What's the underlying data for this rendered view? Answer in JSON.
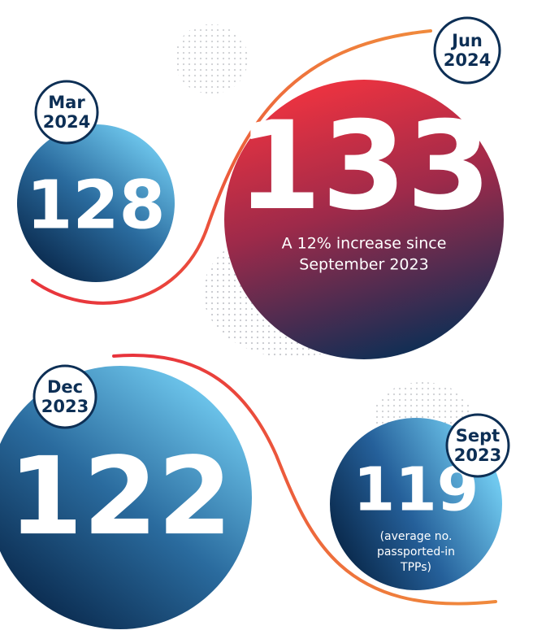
{
  "circles": [
    {
      "month": "Mar",
      "year": "2024",
      "value": "128",
      "caption": []
    },
    {
      "month": "Jun",
      "year": "2024",
      "value": "133",
      "caption": [
        "A 12% increase since",
        "September 2023"
      ]
    },
    {
      "month": "Dec",
      "year": "2023",
      "value": "122",
      "caption": []
    },
    {
      "month": "Sept",
      "year": "2023",
      "value": "119",
      "caption": [
        "(average no.",
        "passported-in",
        "TPPs)"
      ]
    }
  ]
}
